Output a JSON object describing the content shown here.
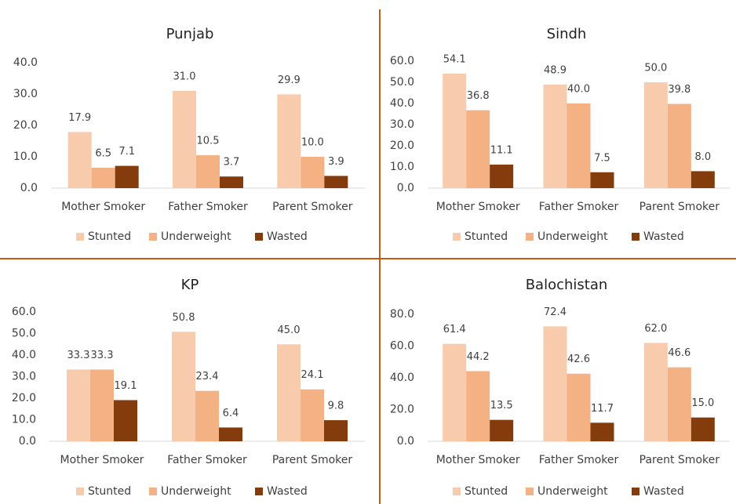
{
  "chart_data": [
    {
      "type": "bar",
      "title": "Punjab",
      "categories": [
        "Mother Smoker",
        "Father Smoker",
        "Parent Smoker"
      ],
      "series": [
        {
          "name": "Stunted",
          "color": "#f8cbad",
          "values": [
            17.9,
            31.0,
            29.9
          ],
          "value_labels": [
            "17.9",
            "31.0",
            "29.9"
          ]
        },
        {
          "name": "Underweight",
          "color": "#f4b183",
          "values": [
            6.5,
            10.5,
            10.0
          ],
          "value_labels": [
            "6.5",
            "10.5",
            "10.0"
          ]
        },
        {
          "name": "Wasted",
          "color": "#843c0c",
          "values": [
            7.1,
            3.7,
            3.9
          ],
          "value_labels": [
            "7.1",
            "3.7",
            "3.9"
          ]
        }
      ],
      "ylim": [
        0,
        40
      ],
      "yticks": [
        {
          "value": 0,
          "label": "0.0"
        },
        {
          "value": 10,
          "label": "10.0"
        },
        {
          "value": 20,
          "label": "20.0"
        },
        {
          "value": 30,
          "label": "30.0"
        },
        {
          "value": 40,
          "label": "40.0"
        }
      ],
      "legend": "bottom"
    },
    {
      "type": "bar",
      "title": "Sindh",
      "categories": [
        "Mother Smoker",
        "Father Smoker",
        "Parent Smoker"
      ],
      "series": [
        {
          "name": "Stunted",
          "color": "#f8cbad",
          "values": [
            54.1,
            48.9,
            50.0
          ],
          "value_labels": [
            "54.1",
            "48.9",
            "50.0"
          ]
        },
        {
          "name": "Underweight",
          "color": "#f4b183",
          "values": [
            36.8,
            40.0,
            39.8
          ],
          "value_labels": [
            "36.8",
            "40.0",
            "39.8"
          ]
        },
        {
          "name": "Wasted",
          "color": "#843c0c",
          "values": [
            11.1,
            7.5,
            8.0
          ],
          "value_labels": [
            "11.1",
            "7.5",
            "8.0"
          ]
        }
      ],
      "ylim": [
        0,
        60
      ],
      "yticks": [
        {
          "value": 0,
          "label": "0.0"
        },
        {
          "value": 10,
          "label": "10.0"
        },
        {
          "value": 20,
          "label": "20.0"
        },
        {
          "value": 30,
          "label": "30.0"
        },
        {
          "value": 40,
          "label": "40.0"
        },
        {
          "value": 50,
          "label": "50.0"
        },
        {
          "value": 60,
          "label": "60.0"
        }
      ],
      "legend": "bottom"
    },
    {
      "type": "bar",
      "title": "KP",
      "categories": [
        "Mother Smoker",
        "Father Smoker",
        "Parent Smoker"
      ],
      "series": [
        {
          "name": "Stunted",
          "color": "#f8cbad",
          "values": [
            33.3,
            50.8,
            45.0
          ],
          "value_labels": [
            "33.3",
            "50.8",
            "45.0"
          ]
        },
        {
          "name": "Underweight",
          "color": "#f4b183",
          "values": [
            33.3,
            23.4,
            24.1
          ],
          "value_labels": [
            "33.3",
            "23.4",
            "24.1"
          ]
        },
        {
          "name": "Wasted",
          "color": "#843c0c",
          "values": [
            19.1,
            6.4,
            9.8
          ],
          "value_labels": [
            "19.1",
            "6.4",
            "9.8"
          ]
        }
      ],
      "ylim": [
        0,
        60
      ],
      "yticks": [
        {
          "value": 0,
          "label": "0.0"
        },
        {
          "value": 10,
          "label": "10.0"
        },
        {
          "value": 20,
          "label": "20.0"
        },
        {
          "value": 30,
          "label": "30.0"
        },
        {
          "value": 40,
          "label": "40.0"
        },
        {
          "value": 50,
          "label": "50.0"
        },
        {
          "value": 60,
          "label": "60.0"
        }
      ],
      "legend": "bottom"
    },
    {
      "type": "bar",
      "title": "Balochistan",
      "categories": [
        "Mother Smoker",
        "Father Smoker",
        "Parent Smoker"
      ],
      "series": [
        {
          "name": "Stunted",
          "color": "#f8cbad",
          "values": [
            61.4,
            72.4,
            62.0
          ],
          "value_labels": [
            "61.4",
            "72.4",
            "62.0"
          ]
        },
        {
          "name": "Underweight",
          "color": "#f4b183",
          "values": [
            44.2,
            42.6,
            46.6
          ],
          "value_labels": [
            "44.2",
            "42.6",
            "46.6"
          ]
        },
        {
          "name": "Wasted",
          "color": "#843c0c",
          "values": [
            13.5,
            11.7,
            15.0
          ],
          "value_labels": [
            "13.5",
            "11.7",
            "15.0"
          ]
        }
      ],
      "ylim": [
        0,
        80
      ],
      "yticks": [
        {
          "value": 0,
          "label": "0.0"
        },
        {
          "value": 20,
          "label": "20.0"
        },
        {
          "value": 40,
          "label": "40.0"
        },
        {
          "value": 60,
          "label": "60.0"
        },
        {
          "value": 80,
          "label": "80.0"
        }
      ],
      "legend": "bottom"
    }
  ]
}
